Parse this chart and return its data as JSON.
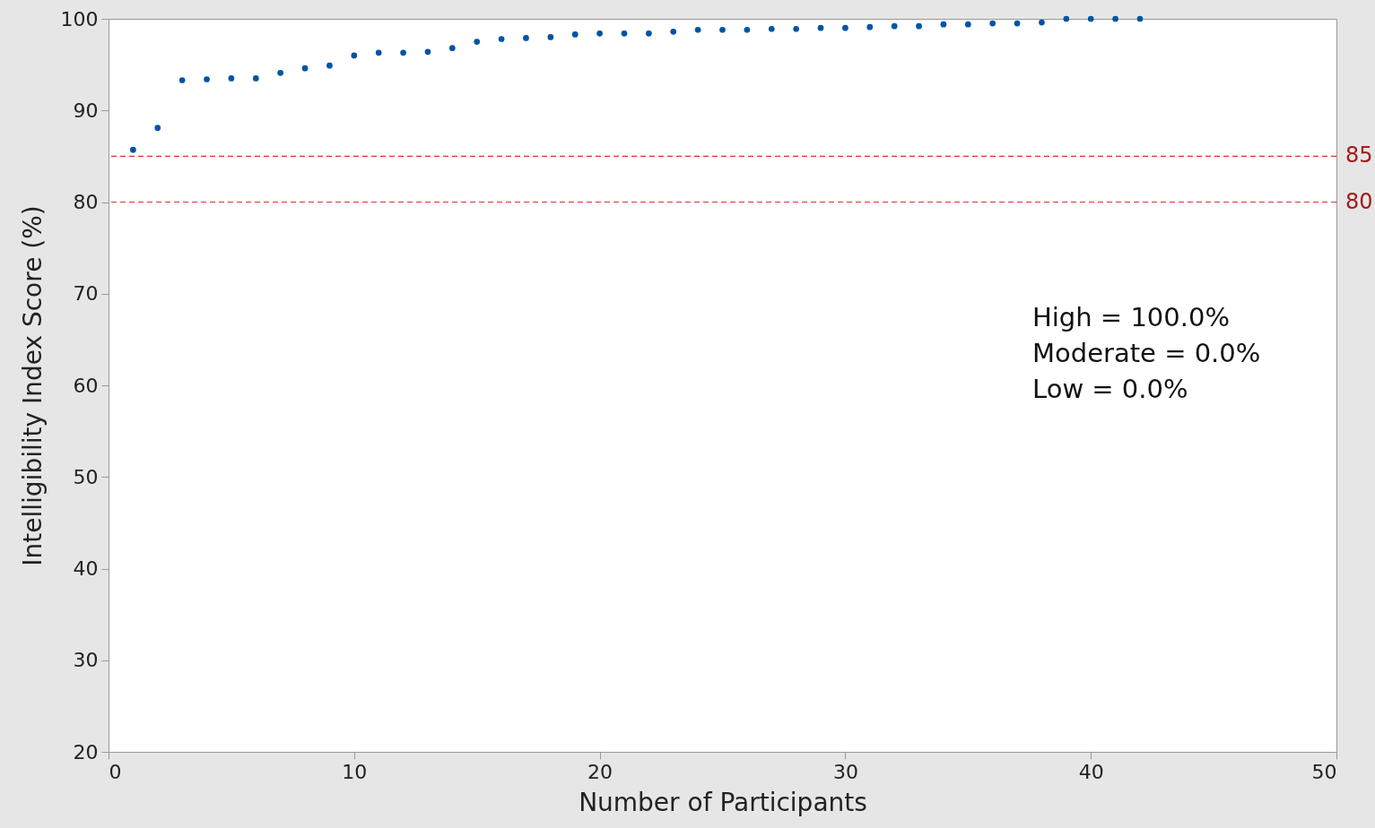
{
  "chart_data": {
    "type": "scatter",
    "xlabel": "Number of Participants",
    "ylabel": "Intelligibility Index Score (%)",
    "x": [
      1,
      2,
      3,
      4,
      5,
      6,
      7,
      8,
      9,
      10,
      11,
      12,
      13,
      14,
      15,
      16,
      17,
      18,
      19,
      20,
      21,
      22,
      23,
      24,
      25,
      26,
      27,
      28,
      29,
      30,
      31,
      32,
      33,
      34,
      35,
      36,
      37,
      38,
      39,
      40,
      41,
      42
    ],
    "series": [
      {
        "color": "#0054a6",
        "values": [
          85.7,
          88.1,
          93.3,
          93.4,
          93.5,
          93.5,
          94.1,
          94.6,
          94.9,
          96.0,
          96.3,
          96.3,
          96.4,
          96.8,
          97.5,
          97.8,
          97.9,
          98.0,
          98.3,
          98.4,
          98.4,
          98.4,
          98.6,
          98.8,
          98.8,
          98.8,
          98.9,
          98.9,
          99.0,
          99.0,
          99.1,
          99.2,
          99.2,
          99.4,
          99.4,
          99.5,
          99.5,
          99.6,
          100,
          100,
          100,
          100
        ]
      }
    ],
    "xlim": [
      0,
      50
    ],
    "xticks": [
      0,
      10,
      20,
      30,
      40,
      50
    ],
    "ylim": [
      20,
      100
    ],
    "yticks": [
      20,
      30,
      40,
      50,
      60,
      70,
      80,
      90,
      100
    ],
    "marker": "circle",
    "grid": false,
    "ref_lines": [
      {
        "axis": "y",
        "value": 85,
        "label": "85",
        "color": "#e03030",
        "line_style": "dashed"
      },
      {
        "axis": "y",
        "value": 80,
        "label": "80",
        "color": "#e03030",
        "line_style": "dashed"
      }
    ],
    "annotations": [
      "High = 100.0%\nModerate = 0.0%\nLow = 0.0%"
    ]
  }
}
